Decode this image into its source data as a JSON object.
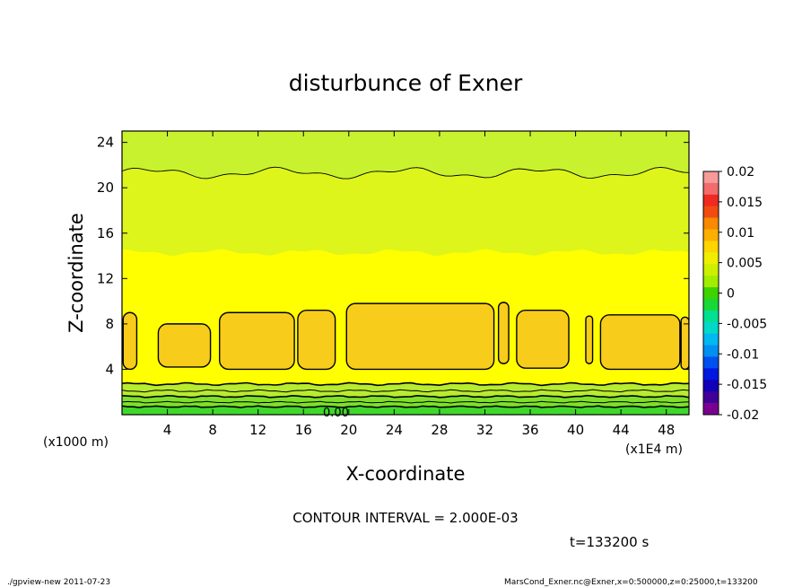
{
  "chart_data": {
    "type": "heatmap",
    "title": "disturbunce of Exner",
    "xlabel": "X-coordinate",
    "ylabel": "Z-coordinate",
    "x_unit_left": "(x1000 m)",
    "x_unit_right": "(x1E4 m)",
    "xlim": [
      0,
      50
    ],
    "ylim": [
      0,
      25
    ],
    "x_ticks": [
      4,
      8,
      12,
      16,
      20,
      24,
      28,
      32,
      36,
      40,
      44,
      48
    ],
    "y_ticks": [
      4,
      8,
      12,
      16,
      20,
      24
    ],
    "contour_interval_text": "CONTOUR INTERVAL = 2.000E-03",
    "contour_label": "0.00",
    "time_text": "t=133200 s",
    "colorbar": {
      "labels": [
        "0.02",
        "0.015",
        "0.01",
        "0.005",
        "0",
        "-0.005",
        "-0.01",
        "-0.015",
        "-0.02"
      ],
      "colors": [
        "#f79a9a",
        "#f36b6b",
        "#ee2a22",
        "#f24b10",
        "#f78a00",
        "#fcaf00",
        "#ffd400",
        "#f0ee00",
        "#ccf000",
        "#a0ee00",
        "#3fd300",
        "#18d838",
        "#00e090",
        "#00d8c8",
        "#00b8f0",
        "#0090f0",
        "#0050f0",
        "#0018e0",
        "#1000b8",
        "#400098",
        "#7a0090"
      ]
    },
    "field_colors": {
      "upper": "#c9f22e",
      "middle": "#ddf51a",
      "band": "#ffff00",
      "cells": "#f8cc1a",
      "low1": "#b8ec30",
      "low2": "#7fe02a",
      "low3": "#3fd82a"
    },
    "cells": [
      {
        "x0": 0.1,
        "x1": 1.3,
        "z0": 4.0,
        "z1": 9.0
      },
      {
        "x0": 3.2,
        "x1": 7.8,
        "z0": 4.2,
        "z1": 8.0
      },
      {
        "x0": 8.6,
        "x1": 15.2,
        "z0": 4.0,
        "z1": 9.0
      },
      {
        "x0": 15.5,
        "x1": 18.8,
        "z0": 4.0,
        "z1": 9.2
      },
      {
        "x0": 19.8,
        "x1": 32.8,
        "z0": 4.0,
        "z1": 9.8
      },
      {
        "x0": 33.2,
        "x1": 34.1,
        "z0": 4.5,
        "z1": 9.9
      },
      {
        "x0": 34.8,
        "x1": 39.4,
        "z0": 4.1,
        "z1": 9.2
      },
      {
        "x0": 40.9,
        "x1": 41.5,
        "z0": 4.5,
        "z1": 8.7
      },
      {
        "x0": 42.2,
        "x1": 49.2,
        "z0": 4.0,
        "z1": 8.8
      },
      {
        "x0": 49.3,
        "x1": 50.0,
        "z0": 4.0,
        "z1": 8.6
      }
    ],
    "footer_left": "./gpview-new   2011-07-23",
    "footer_right": "MarsCond_Exner.nc@Exner,x=0:500000,z=0:25000,t=133200"
  }
}
